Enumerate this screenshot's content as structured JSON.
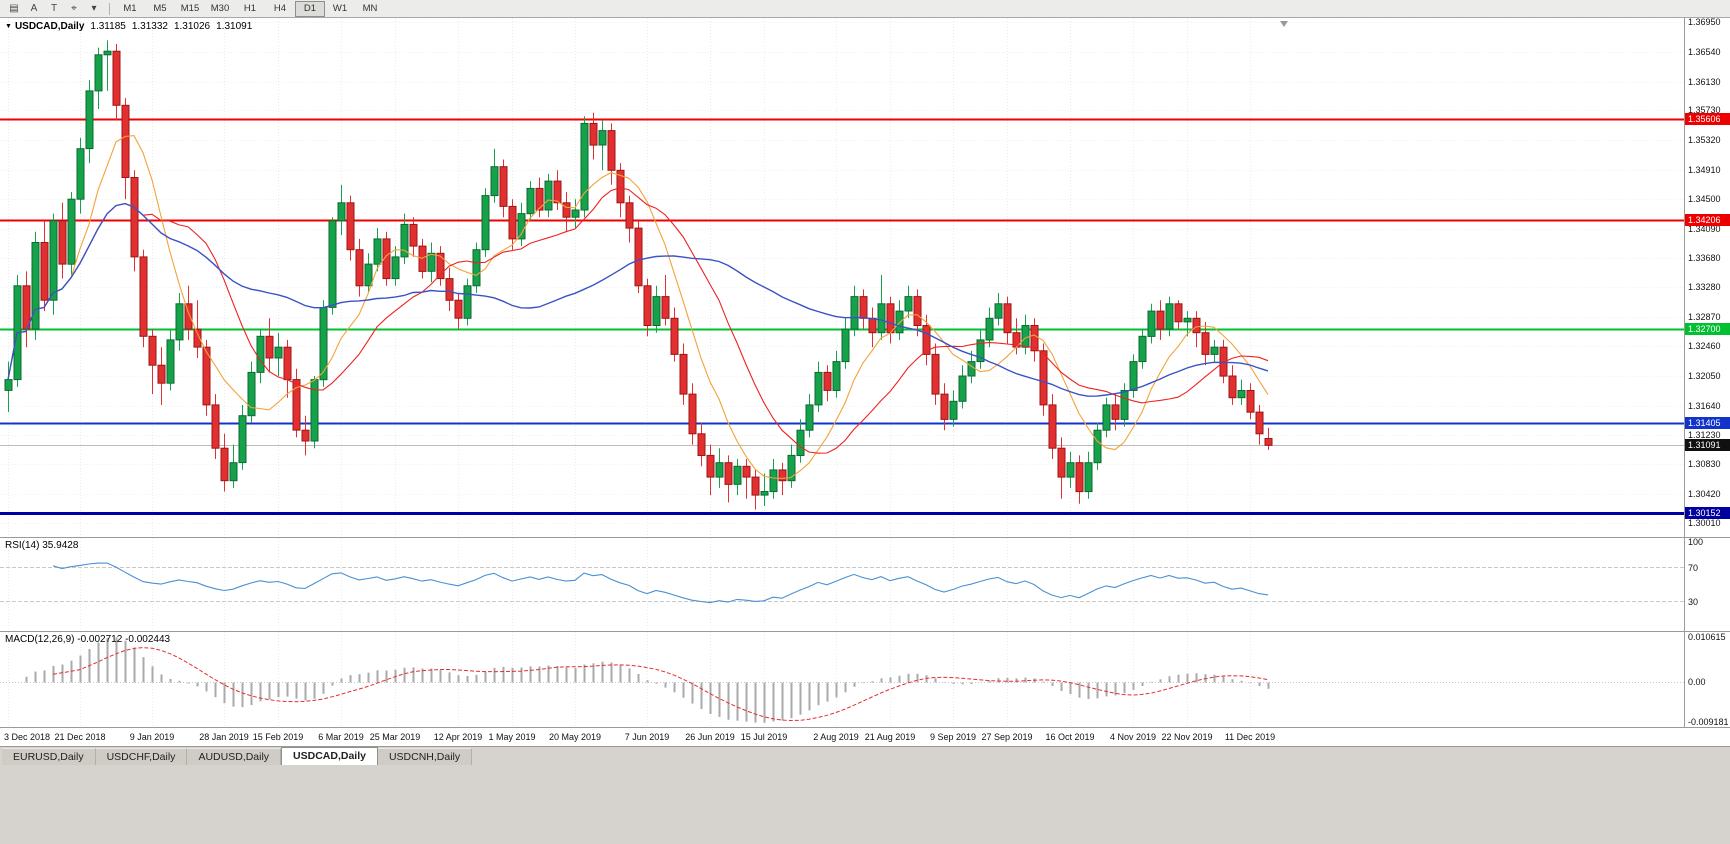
{
  "toolbar": {
    "icons": [
      {
        "name": "charts-icon",
        "glyph": "▤"
      },
      {
        "name": "cursor-icon",
        "glyph": "A"
      },
      {
        "name": "text-tool-icon",
        "glyph": "T"
      },
      {
        "name": "crosshair-tool-icon",
        "glyph": "⌖"
      },
      {
        "name": "dropdown-caret-icon",
        "glyph": "▾"
      }
    ]
  },
  "timeframes": {
    "items": [
      "M1",
      "M5",
      "M15",
      "M30",
      "H1",
      "H4",
      "D1",
      "W1",
      "MN"
    ],
    "active": "D1"
  },
  "tabs": {
    "items": [
      "EURUSD,Daily",
      "USDCHF,Daily",
      "AUDUSD,Daily",
      "USDCAD,Daily",
      "USDCNH,Daily"
    ],
    "active": "USDCAD,Daily"
  },
  "chart_data": {
    "type": "candlestick",
    "symbol": "USDCAD",
    "timeframe": "Daily",
    "title": {
      "arrow": "▼",
      "symbol_period": "USDCAD,Daily",
      "open": "1.31185",
      "high": "1.31332",
      "low": "1.31026",
      "close": "1.31091"
    },
    "y_range": [
      1.2982,
      1.3701
    ],
    "y_ticks": [
      "1.36950",
      "1.36540",
      "1.36130",
      "1.35730",
      "1.35320",
      "1.34910",
      "1.34500",
      "1.34090",
      "1.33680",
      "1.33280",
      "1.32870",
      "1.32460",
      "1.32050",
      "1.31640",
      "1.31230",
      "1.30830",
      "1.30420",
      "1.30010"
    ],
    "x_labels": [
      "3 Dec 2018",
      "21 Dec 2018",
      "9 Jan 2019",
      "28 Jan 2019",
      "15 Feb 2019",
      "6 Mar 2019",
      "25 Mar 2019",
      "12 Apr 2019",
      "1 May 2019",
      "20 May 2019",
      "7 Jun 2019",
      "26 Jun 2019",
      "15 Jul 2019",
      "2 Aug 2019",
      "21 Aug 2019",
      "9 Sep 2019",
      "27 Sep 2019",
      "16 Oct 2019",
      "4 Nov 2019",
      "22 Nov 2019",
      "11 Dec 2019"
    ],
    "x_label_idx": [
      0,
      8,
      16,
      24,
      30,
      37,
      43,
      50,
      56,
      63,
      71,
      78,
      84,
      92,
      98,
      105,
      111,
      118,
      125,
      131,
      138
    ],
    "levels": [
      {
        "price": 1.35606,
        "label": "1.35606",
        "color": "#ee0000",
        "width": 2
      },
      {
        "price": 1.34206,
        "label": "1.34206",
        "color": "#ee0000",
        "width": 2
      },
      {
        "price": 1.327,
        "label": "1.32700",
        "color": "#00c030",
        "width": 2
      },
      {
        "price": 1.31405,
        "label": "1.31405",
        "color": "#1133cc",
        "width": 2
      },
      {
        "price": 1.30152,
        "label": "1.30152",
        "color": "#0000a0",
        "width": 3
      }
    ],
    "bid": {
      "price": 1.31091,
      "label": "1.31091",
      "badge_bg": "#101010",
      "line_color": "#bbbbbb"
    },
    "colors": {
      "up": "#15a24a",
      "up_border": "#0b6b30",
      "down": "#e23030",
      "down_border": "#9c1616",
      "macd_hist": "#aaaaaa",
      "macd_signal": "#e03030"
    },
    "moving_averages": [
      {
        "period": 8,
        "color": "#f2a33c"
      },
      {
        "period": 16,
        "color": "#ee2222"
      },
      {
        "period": 45,
        "color": "#3a53c4"
      }
    ],
    "indicators": {
      "rsi": {
        "label": "RSI(14) 35.9428",
        "period": 14,
        "value": "35.9428",
        "color": "#4a90d2",
        "axis_labels": [
          {
            "label": "100",
            "value": 100
          },
          {
            "label": "70",
            "value": 70
          },
          {
            "label": "30",
            "value": 30
          }
        ],
        "level_lines": [
          70,
          30
        ]
      },
      "macd": {
        "label": "MACD(12,26,9) -0.002712 -0.002443",
        "params": "12,26,9",
        "main_value": "-0.002712",
        "signal_value": "-0.002443",
        "axis_labels": [
          {
            "label": "0.010615",
            "value": 0.010615
          },
          {
            "label": "0.00",
            "value": 0
          },
          {
            "label": "-0.009181",
            "value": -0.009181
          }
        ]
      }
    },
    "ohlc": [
      [
        1.3185,
        1.3225,
        1.3155,
        1.32
      ],
      [
        1.32,
        1.3345,
        1.319,
        1.333
      ],
      [
        1.333,
        1.335,
        1.3245,
        1.327
      ],
      [
        1.327,
        1.3405,
        1.3255,
        1.339
      ],
      [
        1.339,
        1.342,
        1.3295,
        1.331
      ],
      [
        1.331,
        1.343,
        1.329,
        1.342
      ],
      [
        1.342,
        1.3445,
        1.334,
        1.336
      ],
      [
        1.336,
        1.346,
        1.3345,
        1.345
      ],
      [
        1.345,
        1.3535,
        1.343,
        1.352
      ],
      [
        1.352,
        1.3615,
        1.35,
        1.36
      ],
      [
        1.36,
        1.366,
        1.3575,
        1.365
      ],
      [
        1.365,
        1.367,
        1.36,
        1.3655
      ],
      [
        1.3655,
        1.3665,
        1.356,
        1.358
      ],
      [
        1.358,
        1.359,
        1.345,
        1.348
      ],
      [
        1.348,
        1.349,
        1.335,
        1.337
      ],
      [
        1.337,
        1.338,
        1.3245,
        1.326
      ],
      [
        1.326,
        1.327,
        1.318,
        1.322
      ],
      [
        1.322,
        1.3245,
        1.3165,
        1.3195
      ],
      [
        1.3195,
        1.327,
        1.3185,
        1.3255
      ],
      [
        1.3255,
        1.332,
        1.324,
        1.3305
      ],
      [
        1.3305,
        1.333,
        1.3255,
        1.327
      ],
      [
        1.327,
        1.331,
        1.323,
        1.3245
      ],
      [
        1.3245,
        1.3255,
        1.315,
        1.3165
      ],
      [
        1.3165,
        1.318,
        1.309,
        1.3105
      ],
      [
        1.3105,
        1.3125,
        1.3045,
        1.306
      ],
      [
        1.306,
        1.311,
        1.305,
        1.3085
      ],
      [
        1.3085,
        1.3165,
        1.3075,
        1.315
      ],
      [
        1.315,
        1.3225,
        1.314,
        1.321
      ],
      [
        1.321,
        1.327,
        1.3195,
        1.326
      ],
      [
        1.326,
        1.3285,
        1.321,
        1.323
      ],
      [
        1.323,
        1.3265,
        1.3205,
        1.3245
      ],
      [
        1.3245,
        1.3255,
        1.3175,
        1.32
      ],
      [
        1.32,
        1.3215,
        1.312,
        1.313
      ],
      [
        1.313,
        1.315,
        1.3095,
        1.3115
      ],
      [
        1.3115,
        1.3205,
        1.3105,
        1.32
      ],
      [
        1.32,
        1.331,
        1.319,
        1.33
      ],
      [
        1.33,
        1.3425,
        1.329,
        1.342
      ],
      [
        1.342,
        1.347,
        1.34,
        1.3445
      ],
      [
        1.3445,
        1.3455,
        1.3365,
        1.338
      ],
      [
        1.338,
        1.3395,
        1.3315,
        1.333
      ],
      [
        1.333,
        1.3375,
        1.332,
        1.336
      ],
      [
        1.336,
        1.341,
        1.335,
        1.3395
      ],
      [
        1.3395,
        1.3405,
        1.333,
        1.334
      ],
      [
        1.334,
        1.3385,
        1.333,
        1.337
      ],
      [
        1.337,
        1.343,
        1.336,
        1.3415
      ],
      [
        1.3415,
        1.3425,
        1.337,
        1.3385
      ],
      [
        1.3385,
        1.3395,
        1.334,
        1.335
      ],
      [
        1.335,
        1.339,
        1.3335,
        1.3375
      ],
      [
        1.3375,
        1.3385,
        1.333,
        1.334
      ],
      [
        1.334,
        1.3355,
        1.3295,
        1.331
      ],
      [
        1.331,
        1.332,
        1.327,
        1.3285
      ],
      [
        1.3285,
        1.334,
        1.3275,
        1.333
      ],
      [
        1.333,
        1.339,
        1.332,
        1.338
      ],
      [
        1.338,
        1.3465,
        1.337,
        1.3455
      ],
      [
        1.3455,
        1.352,
        1.3445,
        1.3495
      ],
      [
        1.3495,
        1.3505,
        1.3425,
        1.344
      ],
      [
        1.344,
        1.345,
        1.338,
        1.3395
      ],
      [
        1.3395,
        1.3445,
        1.3385,
        1.343
      ],
      [
        1.343,
        1.3475,
        1.342,
        1.3465
      ],
      [
        1.3465,
        1.348,
        1.3425,
        1.3435
      ],
      [
        1.3435,
        1.3485,
        1.3425,
        1.3475
      ],
      [
        1.3475,
        1.349,
        1.3435,
        1.3445
      ],
      [
        1.3445,
        1.346,
        1.3405,
        1.3425
      ],
      [
        1.3425,
        1.345,
        1.341,
        1.3435
      ],
      [
        1.3435,
        1.3565,
        1.3425,
        1.3555
      ],
      [
        1.3555,
        1.357,
        1.3505,
        1.3525
      ],
      [
        1.3525,
        1.356,
        1.349,
        1.3545
      ],
      [
        1.3545,
        1.3555,
        1.347,
        1.349
      ],
      [
        1.349,
        1.35,
        1.3425,
        1.3445
      ],
      [
        1.3445,
        1.3455,
        1.339,
        1.341
      ],
      [
        1.341,
        1.342,
        1.332,
        1.333
      ],
      [
        1.333,
        1.334,
        1.326,
        1.3275
      ],
      [
        1.3275,
        1.333,
        1.3265,
        1.3315
      ],
      [
        1.3315,
        1.3345,
        1.3275,
        1.3285
      ],
      [
        1.3285,
        1.33,
        1.3225,
        1.3235
      ],
      [
        1.3235,
        1.325,
        1.3165,
        1.318
      ],
      [
        1.318,
        1.3195,
        1.311,
        1.3125
      ],
      [
        1.3125,
        1.314,
        1.308,
        1.3095
      ],
      [
        1.3095,
        1.311,
        1.304,
        1.3065
      ],
      [
        1.3065,
        1.3105,
        1.305,
        1.3085
      ],
      [
        1.3085,
        1.3095,
        1.303,
        1.3055
      ],
      [
        1.3055,
        1.309,
        1.304,
        1.308
      ],
      [
        1.308,
        1.309,
        1.3035,
        1.3065
      ],
      [
        1.3065,
        1.3075,
        1.302,
        1.304
      ],
      [
        1.304,
        1.307,
        1.3025,
        1.3045
      ],
      [
        1.3045,
        1.309,
        1.3035,
        1.3075
      ],
      [
        1.3075,
        1.3085,
        1.304,
        1.306
      ],
      [
        1.306,
        1.311,
        1.305,
        1.3095
      ],
      [
        1.3095,
        1.3145,
        1.3085,
        1.313
      ],
      [
        1.313,
        1.318,
        1.312,
        1.3165
      ],
      [
        1.3165,
        1.3225,
        1.3155,
        1.321
      ],
      [
        1.321,
        1.322,
        1.317,
        1.3185
      ],
      [
        1.3185,
        1.324,
        1.3175,
        1.3225
      ],
      [
        1.3225,
        1.3285,
        1.3215,
        1.327
      ],
      [
        1.327,
        1.333,
        1.326,
        1.3315
      ],
      [
        1.3315,
        1.3325,
        1.327,
        1.3285
      ],
      [
        1.3285,
        1.33,
        1.3245,
        1.3265
      ],
      [
        1.3265,
        1.3345,
        1.3255,
        1.3305
      ],
      [
        1.3305,
        1.3315,
        1.325,
        1.3265
      ],
      [
        1.3265,
        1.331,
        1.3255,
        1.3295
      ],
      [
        1.3295,
        1.333,
        1.3285,
        1.3315
      ],
      [
        1.3315,
        1.3325,
        1.326,
        1.3275
      ],
      [
        1.3275,
        1.329,
        1.322,
        1.3235
      ],
      [
        1.3235,
        1.325,
        1.3165,
        1.318
      ],
      [
        1.318,
        1.3195,
        1.313,
        1.3145
      ],
      [
        1.3145,
        1.3185,
        1.3135,
        1.317
      ],
      [
        1.317,
        1.322,
        1.316,
        1.3205
      ],
      [
        1.3205,
        1.324,
        1.3195,
        1.3225
      ],
      [
        1.3225,
        1.327,
        1.3215,
        1.3255
      ],
      [
        1.3255,
        1.33,
        1.3245,
        1.3285
      ],
      [
        1.3285,
        1.332,
        1.3275,
        1.3305
      ],
      [
        1.3305,
        1.3315,
        1.325,
        1.3265
      ],
      [
        1.3265,
        1.3285,
        1.3235,
        1.3245
      ],
      [
        1.3245,
        1.329,
        1.3235,
        1.3275
      ],
      [
        1.3275,
        1.3285,
        1.3225,
        1.324
      ],
      [
        1.324,
        1.325,
        1.315,
        1.3165
      ],
      [
        1.3165,
        1.318,
        1.309,
        1.3105
      ],
      [
        1.3105,
        1.312,
        1.3035,
        1.3065
      ],
      [
        1.3065,
        1.31,
        1.305,
        1.3085
      ],
      [
        1.3085,
        1.3095,
        1.3028,
        1.3045
      ],
      [
        1.3045,
        1.31,
        1.3035,
        1.3085
      ],
      [
        1.3085,
        1.314,
        1.3075,
        1.313
      ],
      [
        1.313,
        1.3175,
        1.312,
        1.3165
      ],
      [
        1.3165,
        1.318,
        1.313,
        1.3145
      ],
      [
        1.3145,
        1.3195,
        1.3135,
        1.3185
      ],
      [
        1.3185,
        1.3235,
        1.3175,
        1.3225
      ],
      [
        1.3225,
        1.327,
        1.3215,
        1.326
      ],
      [
        1.326,
        1.3305,
        1.325,
        1.3295
      ],
      [
        1.3295,
        1.331,
        1.3255,
        1.327
      ],
      [
        1.327,
        1.3315,
        1.326,
        1.3305
      ],
      [
        1.3305,
        1.331,
        1.327,
        1.328
      ],
      [
        1.328,
        1.3295,
        1.326,
        1.3285
      ],
      [
        1.3285,
        1.3295,
        1.3245,
        1.3265
      ],
      [
        1.3265,
        1.328,
        1.322,
        1.3235
      ],
      [
        1.3235,
        1.3255,
        1.3225,
        1.3245
      ],
      [
        1.3245,
        1.3255,
        1.3195,
        1.3205
      ],
      [
        1.3205,
        1.322,
        1.3165,
        1.3175
      ],
      [
        1.3175,
        1.32,
        1.3165,
        1.3185
      ],
      [
        1.3185,
        1.3195,
        1.3145,
        1.3155
      ],
      [
        1.3155,
        1.3165,
        1.311,
        1.3125
      ],
      [
        1.31185,
        1.31332,
        1.31026,
        1.31091
      ]
    ]
  }
}
